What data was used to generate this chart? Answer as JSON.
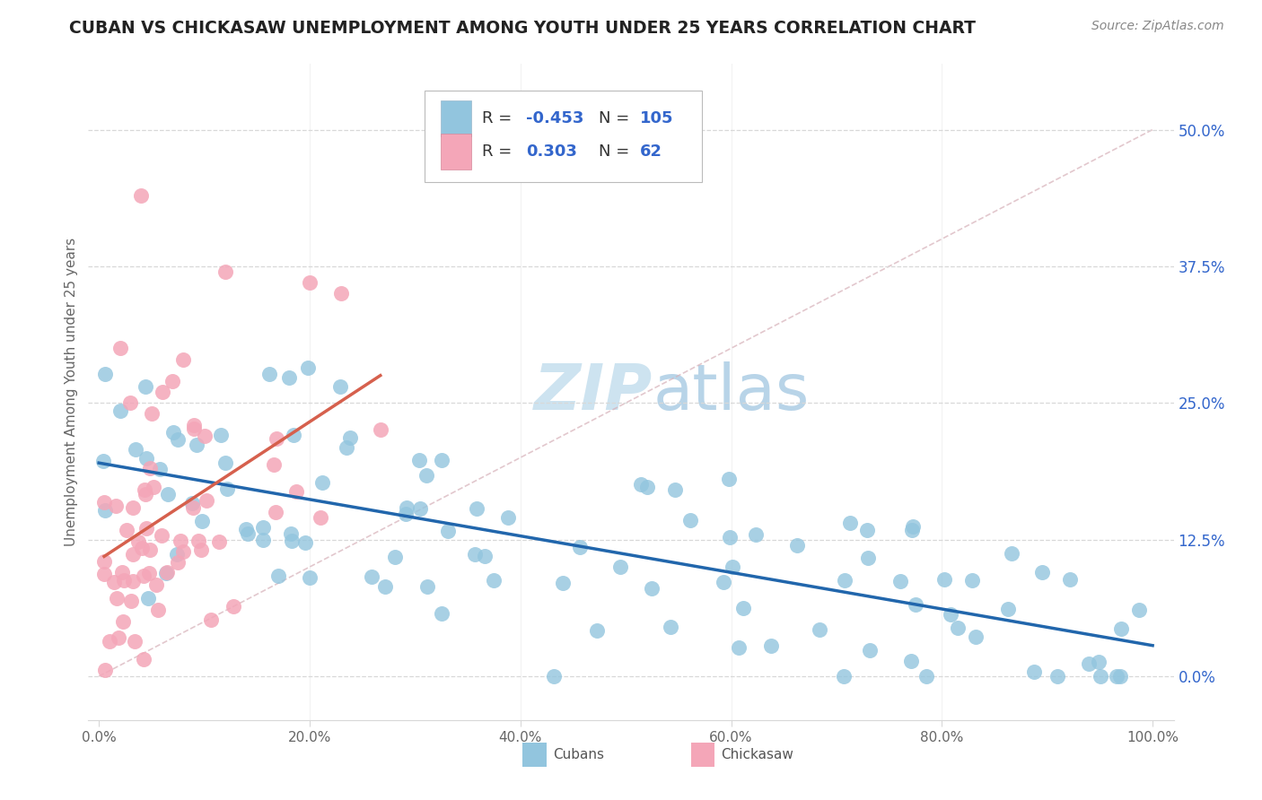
{
  "title": "CUBAN VS CHICKASAW UNEMPLOYMENT AMONG YOUTH UNDER 25 YEARS CORRELATION CHART",
  "source": "Source: ZipAtlas.com",
  "ylabel": "Unemployment Among Youth under 25 years",
  "xlim": [
    -0.01,
    1.02
  ],
  "ylim": [
    -0.04,
    0.56
  ],
  "yticks": [
    0.0,
    0.125,
    0.25,
    0.375,
    0.5
  ],
  "ytick_labels": [
    "0.0%",
    "12.5%",
    "25.0%",
    "37.5%",
    "50.0%"
  ],
  "xticks": [
    0.0,
    0.2,
    0.4,
    0.6,
    0.8,
    1.0
  ],
  "xtick_labels": [
    "0.0%",
    "20.0%",
    "40.0%",
    "60.0%",
    "80.0%",
    "100.0%"
  ],
  "blue_color": "#92c5de",
  "pink_color": "#f4a6b8",
  "blue_line_color": "#2166ac",
  "pink_line_color": "#d6604d",
  "diag_line_color": "#d6b0b8",
  "background_color": "#ffffff",
  "watermark_color": "#cde3f0",
  "legend_R_color": "#3366cc",
  "legend_N_color": "#3366cc",
  "legend_border": "#cccccc",
  "grid_color": "#d8d8d8",
  "tick_color": "#666666",
  "title_color": "#222222",
  "source_color": "#888888",
  "ylabel_color": "#666666"
}
